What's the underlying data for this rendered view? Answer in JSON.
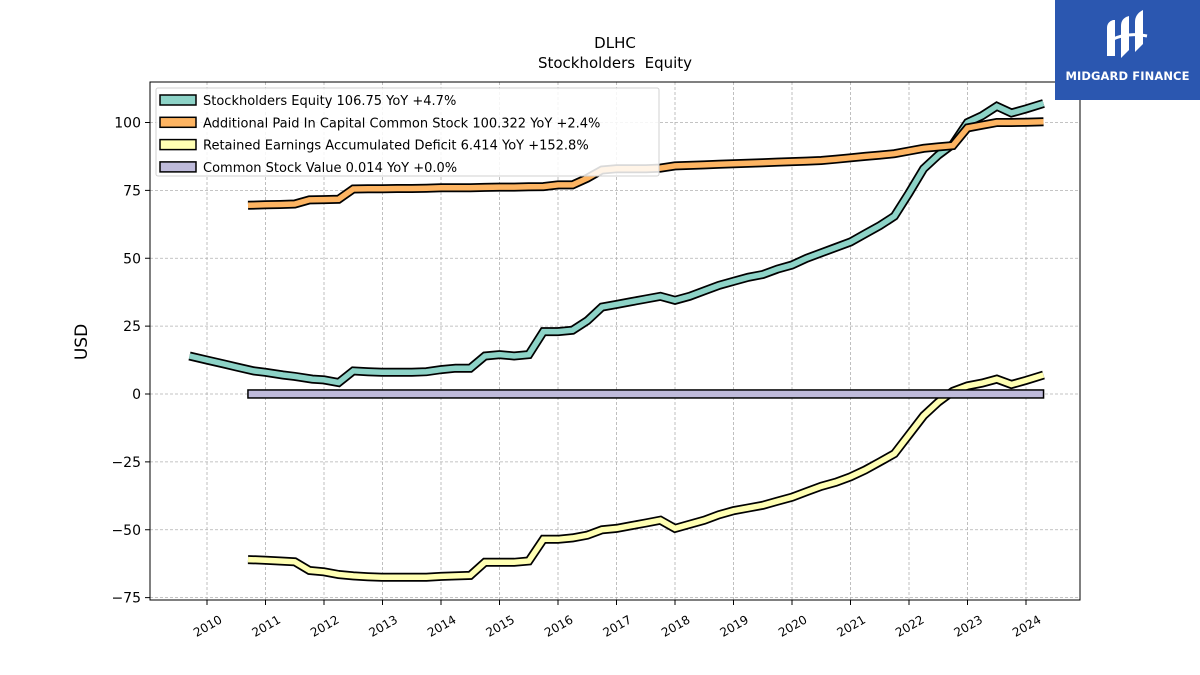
{
  "brand": {
    "name": "MIDGARD FINANCE",
    "logo_icon": "midgard-m-icon",
    "color": "#2b57b0"
  },
  "chart_data": {
    "type": "line",
    "title": "DLHC",
    "subtitle": "Stockholders  Equity",
    "ylabel": "USD",
    "xlabel": "",
    "ylim": [
      -77,
      116
    ],
    "xlim": [
      2009.0,
      2025.0
    ],
    "grid": true,
    "legend_position": "top-left",
    "x_ticks": [
      "2010",
      "2011",
      "2012",
      "2013",
      "2014",
      "2015",
      "2016",
      "2017",
      "2018",
      "2019",
      "2020",
      "2021",
      "2022",
      "2023",
      "2024"
    ],
    "y_ticks": [
      -75,
      -50,
      -25,
      0,
      25,
      50,
      75,
      100
    ],
    "y_tick_labels": [
      "−75",
      "−50",
      "−25",
      "0",
      "25",
      "50",
      "75",
      "100"
    ],
    "series": [
      {
        "name": "Stockholders Equity  106.75 YoY +4.7%",
        "color": "#8dd3c7",
        "points": [
          [
            2009.7,
            14
          ],
          [
            2010.0,
            12.5
          ],
          [
            2010.3,
            11
          ],
          [
            2010.5,
            10
          ],
          [
            2010.8,
            8.5
          ],
          [
            2011.0,
            8
          ],
          [
            2011.3,
            7
          ],
          [
            2011.5,
            6.5
          ],
          [
            2011.8,
            5.5
          ],
          [
            2012.0,
            5.2
          ],
          [
            2012.25,
            4.2
          ],
          [
            2012.5,
            8.5
          ],
          [
            2012.75,
            8.2
          ],
          [
            2013.0,
            8
          ],
          [
            2013.25,
            8
          ],
          [
            2013.5,
            8
          ],
          [
            2013.75,
            8.2
          ],
          [
            2014.0,
            9
          ],
          [
            2014.25,
            9.5
          ],
          [
            2014.5,
            9.5
          ],
          [
            2014.75,
            14
          ],
          [
            2015.0,
            14.5
          ],
          [
            2015.25,
            14
          ],
          [
            2015.5,
            14.5
          ],
          [
            2015.75,
            23
          ],
          [
            2016.0,
            23
          ],
          [
            2016.25,
            23.5
          ],
          [
            2016.5,
            27
          ],
          [
            2016.75,
            32
          ],
          [
            2017.0,
            33
          ],
          [
            2017.25,
            34
          ],
          [
            2017.5,
            35
          ],
          [
            2017.75,
            36
          ],
          [
            2018.0,
            34.5
          ],
          [
            2018.25,
            36
          ],
          [
            2018.5,
            38
          ],
          [
            2018.75,
            40
          ],
          [
            2019.0,
            41.5
          ],
          [
            2019.25,
            43
          ],
          [
            2019.5,
            44
          ],
          [
            2019.75,
            46
          ],
          [
            2020.0,
            47.5
          ],
          [
            2020.25,
            50
          ],
          [
            2020.5,
            52
          ],
          [
            2020.75,
            54
          ],
          [
            2021.0,
            56
          ],
          [
            2021.25,
            59
          ],
          [
            2021.5,
            62
          ],
          [
            2021.75,
            65.5
          ],
          [
            2022.0,
            74
          ],
          [
            2022.25,
            83
          ],
          [
            2022.5,
            88
          ],
          [
            2022.75,
            92
          ],
          [
            2023.0,
            100
          ],
          [
            2023.25,
            102.5
          ],
          [
            2023.5,
            106
          ],
          [
            2023.75,
            103.5
          ],
          [
            2024.0,
            105
          ],
          [
            2024.3,
            107
          ]
        ]
      },
      {
        "name": "Additional Paid In Capital Common Stock  100.322 YoY +2.4%",
        "color": "#fdb462",
        "points": [
          [
            2010.7,
            69.5
          ],
          [
            2011.0,
            69.7
          ],
          [
            2011.25,
            69.8
          ],
          [
            2011.5,
            70
          ],
          [
            2011.75,
            71.5
          ],
          [
            2012.0,
            71.6
          ],
          [
            2012.25,
            71.7
          ],
          [
            2012.5,
            75.5
          ],
          [
            2012.75,
            75.6
          ],
          [
            2013.0,
            75.6
          ],
          [
            2013.25,
            75.7
          ],
          [
            2013.5,
            75.7
          ],
          [
            2013.75,
            75.8
          ],
          [
            2014.0,
            76
          ],
          [
            2014.25,
            76
          ],
          [
            2014.5,
            76
          ],
          [
            2014.75,
            76.1
          ],
          [
            2015.0,
            76.2
          ],
          [
            2015.25,
            76.2
          ],
          [
            2015.5,
            76.3
          ],
          [
            2015.75,
            76.4
          ],
          [
            2016.0,
            77
          ],
          [
            2016.25,
            77
          ],
          [
            2016.5,
            79.5
          ],
          [
            2016.75,
            82.5
          ],
          [
            2017.0,
            83
          ],
          [
            2017.25,
            83
          ],
          [
            2017.5,
            83
          ],
          [
            2017.75,
            83.2
          ],
          [
            2018.0,
            84
          ],
          [
            2018.25,
            84.2
          ],
          [
            2018.5,
            84.4
          ],
          [
            2018.75,
            84.6
          ],
          [
            2019.0,
            84.8
          ],
          [
            2019.25,
            85
          ],
          [
            2019.5,
            85.2
          ],
          [
            2019.75,
            85.4
          ],
          [
            2020.0,
            85.6
          ],
          [
            2020.25,
            85.8
          ],
          [
            2020.5,
            86
          ],
          [
            2020.75,
            86.5
          ],
          [
            2021.0,
            87
          ],
          [
            2021.25,
            87.5
          ],
          [
            2021.5,
            88
          ],
          [
            2021.75,
            88.5
          ],
          [
            2022.0,
            89.5
          ],
          [
            2022.25,
            90.5
          ],
          [
            2022.5,
            91
          ],
          [
            2022.75,
            91.5
          ],
          [
            2023.0,
            98
          ],
          [
            2023.25,
            99
          ],
          [
            2023.5,
            100
          ],
          [
            2023.75,
            100
          ],
          [
            2024.0,
            100.1
          ],
          [
            2024.3,
            100.3
          ]
        ]
      },
      {
        "name": "Retained Earnings Accumulated Deficit  6.414 YoY +152.8%",
        "color": "#ffffb3",
        "points": [
          [
            2010.7,
            -61
          ],
          [
            2011.0,
            -61.2
          ],
          [
            2011.25,
            -61.5
          ],
          [
            2011.5,
            -61.8
          ],
          [
            2011.75,
            -65
          ],
          [
            2012.0,
            -65.5
          ],
          [
            2012.25,
            -66.5
          ],
          [
            2012.5,
            -67
          ],
          [
            2012.75,
            -67.3
          ],
          [
            2013.0,
            -67.5
          ],
          [
            2013.25,
            -67.5
          ],
          [
            2013.5,
            -67.5
          ],
          [
            2013.75,
            -67.5
          ],
          [
            2014.0,
            -67.2
          ],
          [
            2014.25,
            -67
          ],
          [
            2014.5,
            -66.8
          ],
          [
            2014.75,
            -62
          ],
          [
            2015.0,
            -62
          ],
          [
            2015.25,
            -62
          ],
          [
            2015.5,
            -61.5
          ],
          [
            2015.75,
            -53.5
          ],
          [
            2016.0,
            -53.5
          ],
          [
            2016.25,
            -53
          ],
          [
            2016.5,
            -52
          ],
          [
            2016.75,
            -50
          ],
          [
            2017.0,
            -49.5
          ],
          [
            2017.25,
            -48.5
          ],
          [
            2017.5,
            -47.5
          ],
          [
            2017.75,
            -46.5
          ],
          [
            2018.0,
            -49.5
          ],
          [
            2018.25,
            -48
          ],
          [
            2018.5,
            -46.5
          ],
          [
            2018.75,
            -44.5
          ],
          [
            2019.0,
            -43
          ],
          [
            2019.25,
            -42
          ],
          [
            2019.5,
            -41
          ],
          [
            2019.75,
            -39.5
          ],
          [
            2020.0,
            -38
          ],
          [
            2020.25,
            -36
          ],
          [
            2020.5,
            -34
          ],
          [
            2020.75,
            -32.5
          ],
          [
            2021.0,
            -30.5
          ],
          [
            2021.25,
            -28
          ],
          [
            2021.5,
            -25
          ],
          [
            2021.75,
            -22
          ],
          [
            2022.0,
            -15
          ],
          [
            2022.25,
            -8
          ],
          [
            2022.5,
            -3
          ],
          [
            2022.75,
            1
          ],
          [
            2023.0,
            3
          ],
          [
            2023.25,
            4
          ],
          [
            2023.5,
            5.5
          ],
          [
            2023.75,
            3.5
          ],
          [
            2024.0,
            5
          ],
          [
            2024.3,
            7
          ]
        ]
      },
      {
        "name": "Common Stock Value  0.014 YoY +0.0%",
        "color": "#bebada",
        "bar": true,
        "points": [
          [
            2010.7,
            0.014
          ],
          [
            2024.3,
            0.014
          ]
        ]
      }
    ]
  }
}
